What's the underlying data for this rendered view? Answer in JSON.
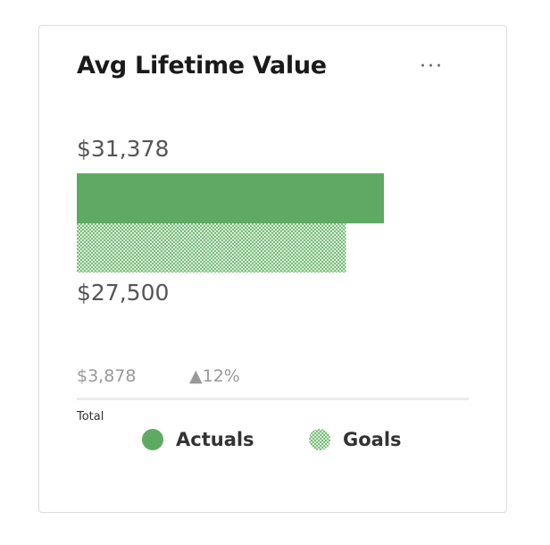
{
  "card": {
    "title": "Avg Lifetime Value",
    "more_icon": "ellipsis-icon",
    "more_label": "···"
  },
  "colors": {
    "actual": "#5faa63",
    "goal_fg": "#74bd74",
    "goal_bg": "#dff0df"
  },
  "summary": {
    "difference": "$3,878",
    "change": "▲12%",
    "total_label": "Total"
  },
  "chart_data": {
    "type": "bar",
    "orientation": "horizontal",
    "categories": [
      "Actuals",
      "Goals"
    ],
    "values": [
      31378,
      27500
    ],
    "value_labels": [
      "$31,378",
      "$27,500"
    ],
    "legend": [
      "Actuals",
      "Goals"
    ],
    "legend_position": "bottom",
    "grid": false
  }
}
